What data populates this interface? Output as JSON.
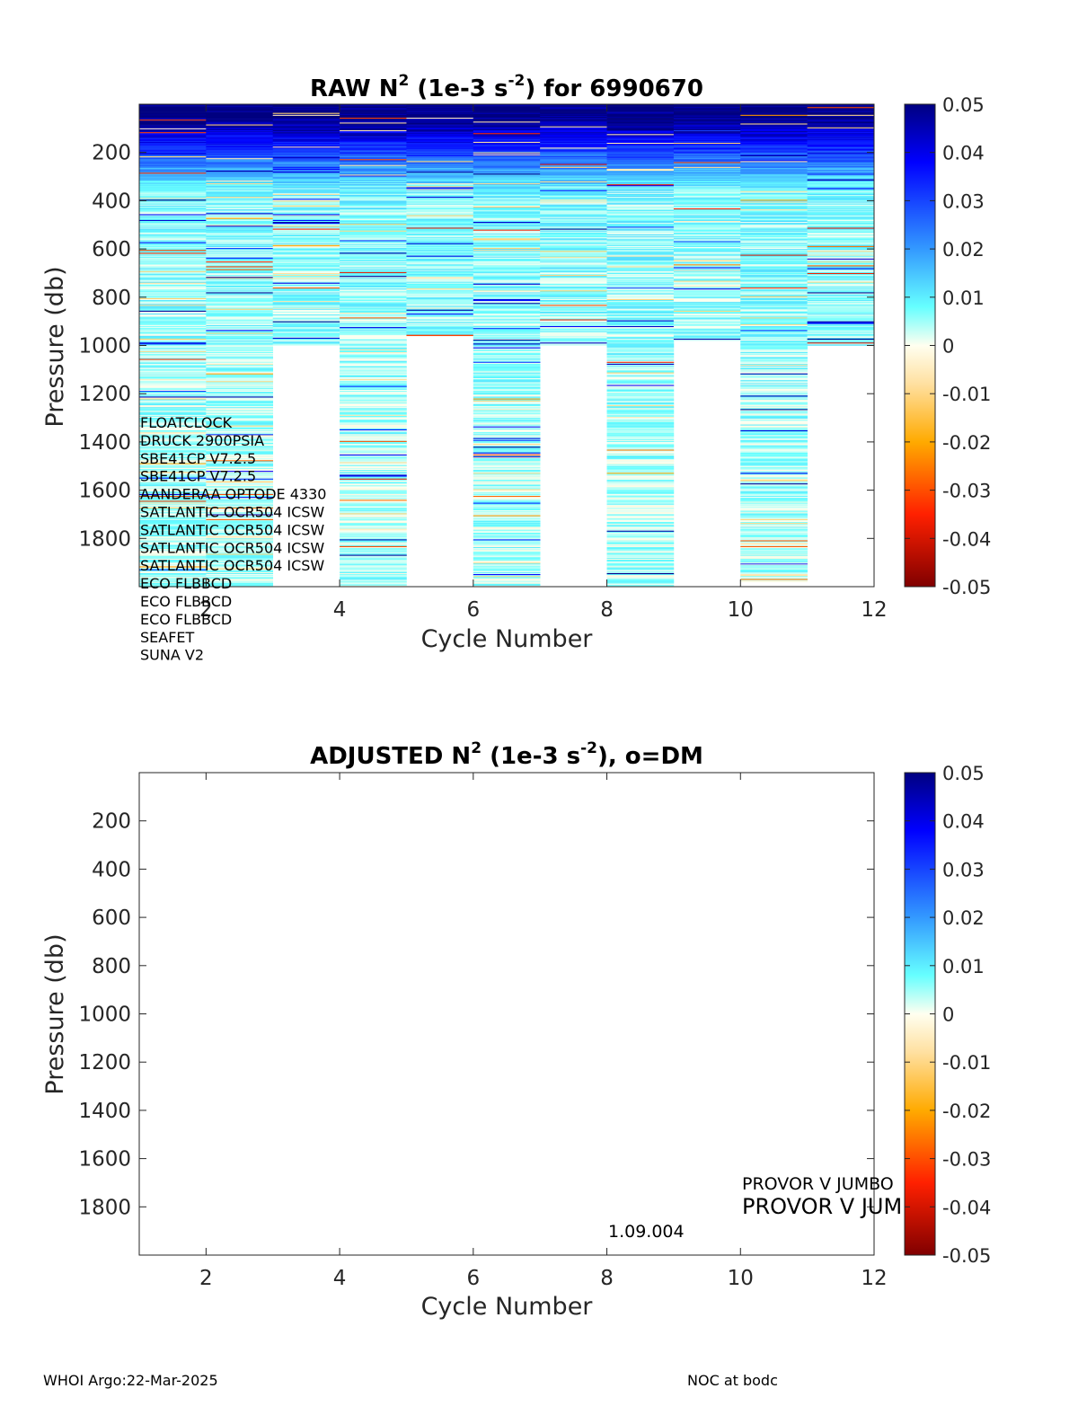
{
  "footer": {
    "left": "WHOI Argo:22-Mar-2025",
    "right": "NOC at bodc"
  },
  "chart_data": [
    {
      "type": "heatmap",
      "title_parts": [
        "RAW N",
        "2",
        " (1e-3 s",
        "-2",
        ") for 6990670"
      ],
      "xlabel": "Cycle Number",
      "ylabel": "Pressure (db)",
      "xlim": [
        1,
        12
      ],
      "ylim": [
        2000,
        0
      ],
      "x_ticks": [
        2,
        4,
        6,
        8,
        10,
        12
      ],
      "y_ticks": [
        200,
        400,
        600,
        800,
        1000,
        1200,
        1400,
        1600,
        1800
      ],
      "colorbar": {
        "range": [
          -0.05,
          0.05
        ],
        "ticks": [
          "0.05",
          "0.04",
          "0.03",
          "0.02",
          "0.01",
          "0",
          "-0.01",
          "-0.02",
          "-0.03",
          "-0.04",
          "-0.05"
        ],
        "colormap": "jet-like diverging"
      },
      "cycles": [
        {
          "cycle": 1,
          "max_pressure": 2000
        },
        {
          "cycle": 2,
          "max_pressure": 2000
        },
        {
          "cycle": 3,
          "max_pressure": 1000
        },
        {
          "cycle": 4,
          "max_pressure": 2000
        },
        {
          "cycle": 5,
          "max_pressure": 960
        },
        {
          "cycle": 6,
          "max_pressure": 2000
        },
        {
          "cycle": 7,
          "max_pressure": 1000
        },
        {
          "cycle": 8,
          "max_pressure": 2000
        },
        {
          "cycle": 9,
          "max_pressure": 980
        },
        {
          "cycle": 10,
          "max_pressure": 1980
        },
        {
          "cycle": 11,
          "max_pressure": 1000
        }
      ],
      "annotations": [
        "FLOATCLOCK",
        "DRUCK 2900PSIA",
        "SBE41CP V7.2.5",
        "SBE41CP V7.2.5",
        "AANDERAA OPTODE 4330",
        "SATLANTIC OCR504 ICSW",
        "SATLANTIC OCR504 ICSW",
        "SATLANTIC OCR504 ICSW",
        "SATLANTIC OCR504 ICSW",
        "ECO FLBBCD",
        "ECO FLBBCD",
        "ECO FLBBCD",
        "SEAFET",
        "SUNA V2"
      ]
    },
    {
      "type": "heatmap",
      "title_parts": [
        "ADJUSTED N",
        "2",
        " (1e-3 s",
        "-2",
        "), o=DM"
      ],
      "xlabel": "Cycle Number",
      "ylabel": "Pressure (db)",
      "xlim": [
        1,
        12
      ],
      "ylim": [
        2000,
        0
      ],
      "x_ticks": [
        2,
        4,
        6,
        8,
        10,
        12
      ],
      "y_ticks": [
        200,
        400,
        600,
        800,
        1000,
        1200,
        1400,
        1600,
        1800
      ],
      "colorbar": {
        "range": [
          -0.05,
          0.05
        ],
        "ticks": [
          "0.05",
          "0.04",
          "0.03",
          "0.02",
          "0.01",
          "0",
          "-0.01",
          "-0.02",
          "-0.03",
          "-0.04",
          "-0.05"
        ],
        "colormap": "jet-like diverging"
      },
      "cycles": [],
      "annotations": [
        "PROVOR V JUMBO",
        "PROVOR V JUMBO",
        "1.09.004"
      ]
    }
  ]
}
